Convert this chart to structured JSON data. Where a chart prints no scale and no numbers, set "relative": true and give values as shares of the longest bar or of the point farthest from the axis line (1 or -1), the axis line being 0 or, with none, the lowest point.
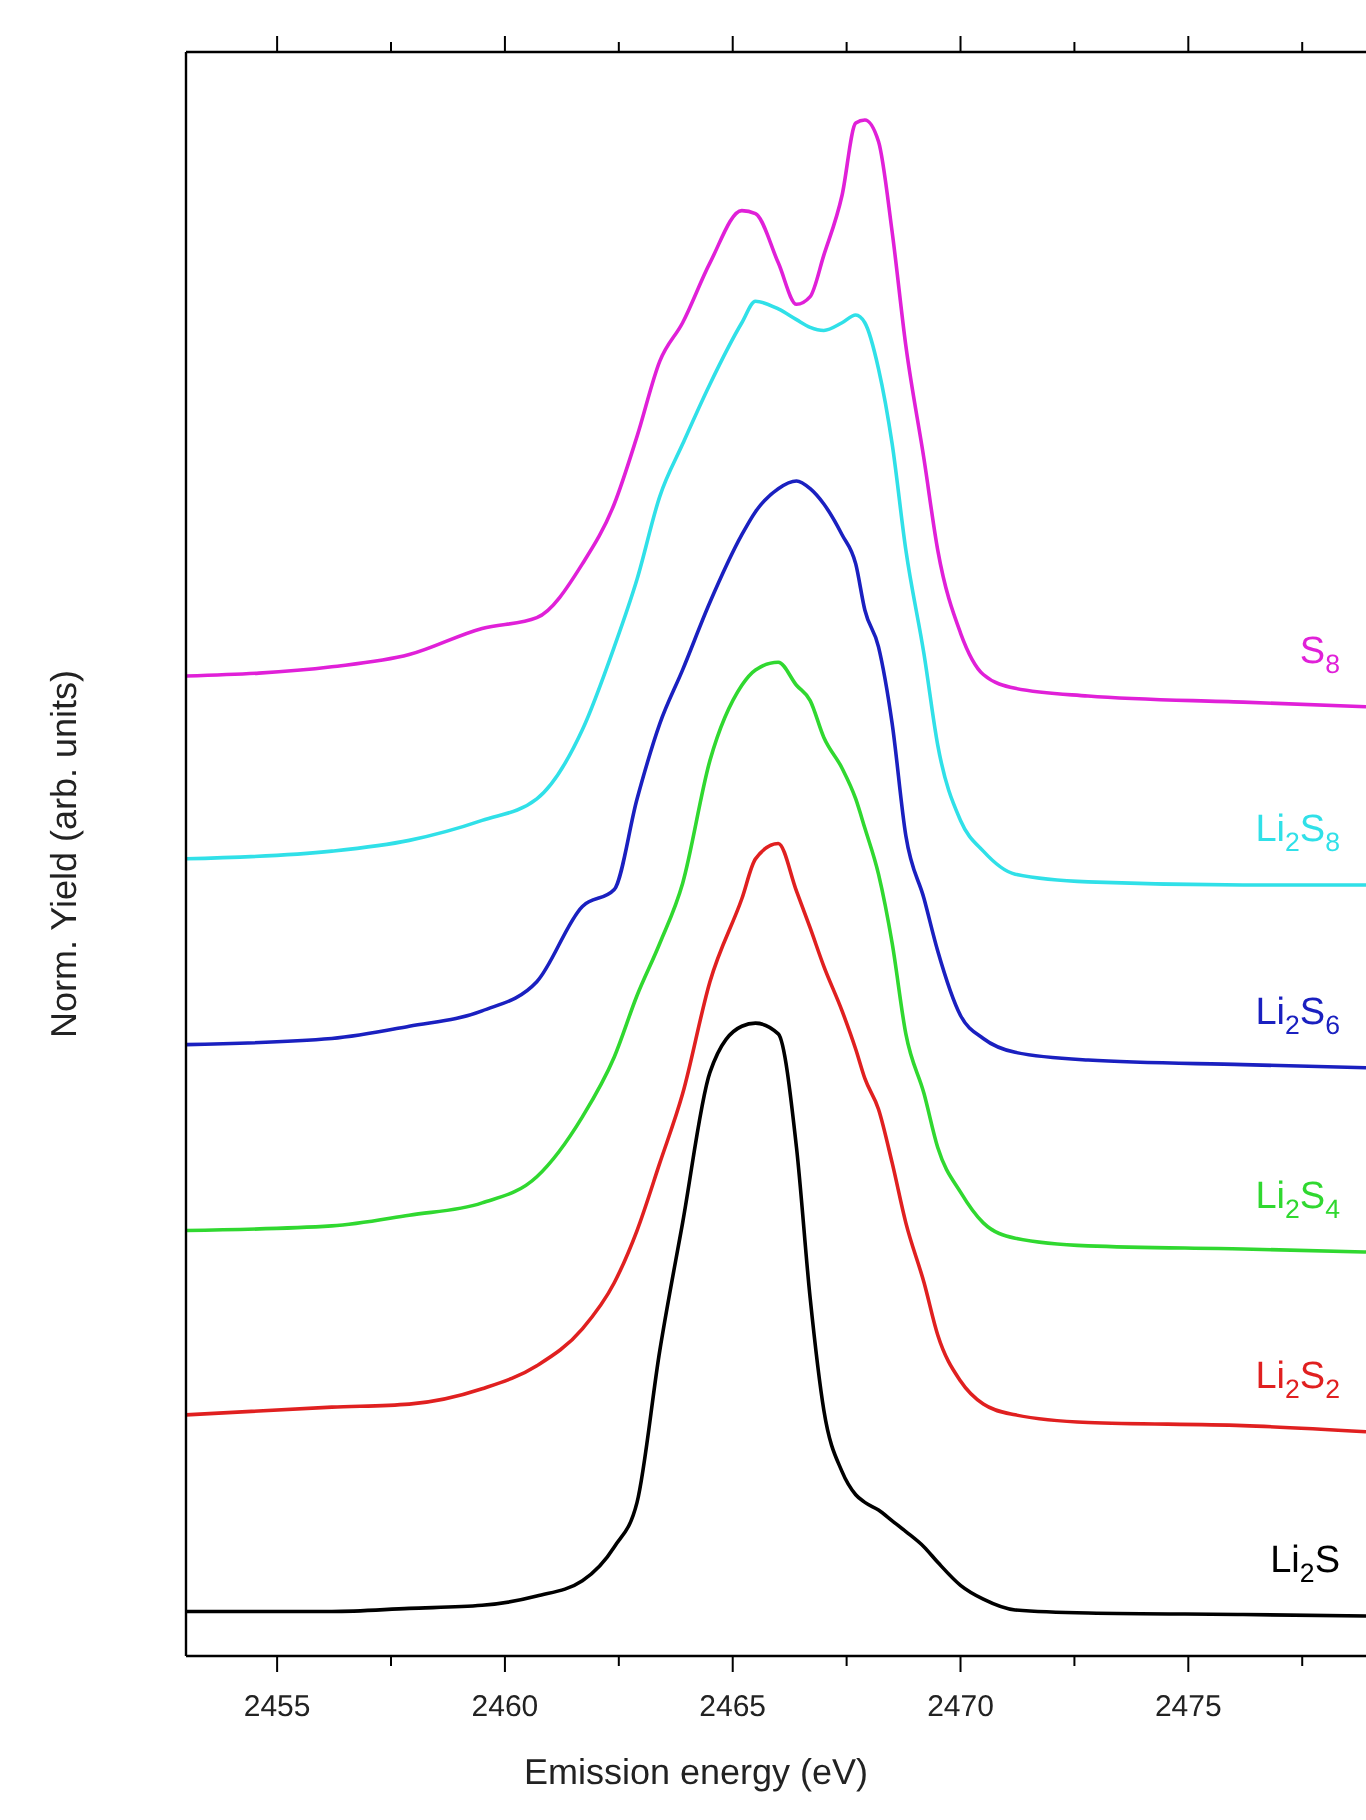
{
  "chart_data": {
    "type": "line",
    "relative": true,
    "xlabel": "Emission energy (eV)",
    "ylabel": "Norm. Yield (arb. units)",
    "xlim": [
      2453.0,
      2478.9
    ],
    "xticks": [
      2455,
      {
        "value": 2457.5,
        "label": null
      },
      2460,
      {
        "value": 2462.5,
        "label": null
      },
      2465,
      {
        "value": 2467.5,
        "label": null
      },
      2470,
      {
        "value": 2472.5,
        "label": null
      },
      2475,
      {
        "value": 2477.5,
        "label": null
      }
    ],
    "x": [
      2453.0,
      2456.2,
      2457.9,
      2459.5,
      2460.7,
      2461.7,
      2462.4,
      2462.9,
      2463.4,
      2463.9,
      2464.5,
      2465.2,
      2465.5,
      2466.0,
      2466.4,
      2466.7,
      2467.0,
      2467.4,
      2467.7,
      2467.9,
      2468.2,
      2468.5,
      2468.8,
      2469.2,
      2469.5,
      2470.0,
      2470.5,
      2471.2,
      2472.8,
      2476.2,
      2478.9
    ],
    "grid": false,
    "marker": "none",
    "line_style": "solid",
    "series": [
      {
        "name": "S$_{8}$",
        "color": "#e020d8",
        "values": [
          0.638,
          0.644,
          0.652,
          0.669,
          0.676,
          0.711,
          0.75,
          0.794,
          0.843,
          0.868,
          0.907,
          0.941,
          0.939,
          0.907,
          0.88,
          0.885,
          0.912,
          0.951,
          0.998,
          1.0,
          0.986,
          0.927,
          0.853,
          0.779,
          0.72,
          0.666,
          0.639,
          0.63,
          0.625,
          0.621,
          0.618
        ]
      },
      {
        "name": "Li$_{2}$S$_{8}$",
        "color": "#30e0e8",
        "values": [
          0.519,
          0.524,
          0.531,
          0.544,
          0.558,
          0.603,
          0.657,
          0.701,
          0.755,
          0.789,
          0.828,
          0.868,
          0.882,
          0.877,
          0.87,
          0.865,
          0.863,
          0.868,
          0.873,
          0.868,
          0.838,
          0.789,
          0.72,
          0.652,
          0.593,
          0.544,
          0.524,
          0.509,
          0.504,
          0.502,
          0.502
        ]
      },
      {
        "name": "Li$_{2}$S$_{6}$",
        "color": "#1a20c0",
        "values": [
          0.398,
          0.402,
          0.41,
          0.42,
          0.439,
          0.488,
          0.499,
          0.558,
          0.607,
          0.642,
          0.686,
          0.73,
          0.745,
          0.76,
          0.765,
          0.76,
          0.75,
          0.73,
          0.711,
          0.681,
          0.657,
          0.607,
          0.534,
          0.493,
          0.459,
          0.417,
          0.402,
          0.393,
          0.388,
          0.385,
          0.383
        ]
      },
      {
        "name": "Li$_{2}$S$_{4}$",
        "color": "#30d830",
        "values": [
          0.277,
          0.28,
          0.287,
          0.295,
          0.312,
          0.351,
          0.39,
          0.43,
          0.464,
          0.503,
          0.583,
          0.632,
          0.642,
          0.647,
          0.632,
          0.622,
          0.598,
          0.578,
          0.558,
          0.539,
          0.509,
          0.464,
          0.405,
          0.366,
          0.331,
          0.302,
          0.282,
          0.272,
          0.267,
          0.265,
          0.263
        ]
      },
      {
        "name": "Li$_{2}$S$_{2}$",
        "color": "#e02020",
        "values": [
          0.157,
          0.162,
          0.164,
          0.174,
          0.189,
          0.213,
          0.243,
          0.277,
          0.321,
          0.366,
          0.439,
          0.493,
          0.519,
          0.529,
          0.498,
          0.474,
          0.449,
          0.42,
          0.395,
          0.376,
          0.356,
          0.321,
          0.282,
          0.243,
          0.209,
          0.179,
          0.164,
          0.157,
          0.152,
          0.15,
          0.146
        ]
      },
      {
        "name": "Li$_{2}$S",
        "color": "#000000",
        "values": [
          0.029,
          0.029,
          0.031,
          0.033,
          0.039,
          0.049,
          0.071,
          0.1,
          0.199,
          0.282,
          0.38,
          0.41,
          0.412,
          0.405,
          0.331,
          0.233,
          0.16,
          0.12,
          0.105,
          0.1,
          0.095,
          0.088,
          0.081,
          0.071,
          0.061,
          0.046,
          0.037,
          0.03,
          0.028,
          0.027,
          0.026
        ]
      }
    ]
  }
}
